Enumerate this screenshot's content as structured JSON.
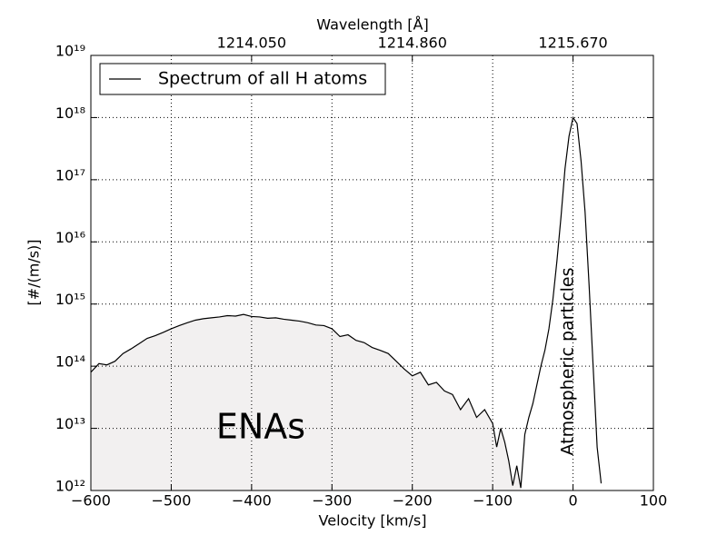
{
  "chart_data": {
    "type": "line",
    "xlabel": "Velocity [km/s]",
    "ylabel": "[#/(m/s)]",
    "x2label": "Wavelength [Å]",
    "log_y": true,
    "grid": true,
    "legend": "upper left",
    "fill_color": "#f2f0f0",
    "annotations": [
      "ENAs",
      "Atmospheric particles"
    ],
    "xlim": [
      -600,
      100
    ],
    "xticks": [
      {
        "value": -600,
        "label": "−600"
      },
      {
        "value": -500,
        "label": "−500"
      },
      {
        "value": -400,
        "label": "−400"
      },
      {
        "value": -300,
        "label": "−300"
      },
      {
        "value": -200,
        "label": "−200"
      },
      {
        "value": -100,
        "label": "−100"
      },
      0,
      100
    ],
    "x2lim": [
      1213.24,
      1216.075
    ],
    "x2ticks": [
      {
        "value": 1214.05,
        "label": "1214.050"
      },
      {
        "value": 1214.86,
        "label": "1214.860"
      },
      {
        "value": 1215.67,
        "label": "1215.670"
      }
    ],
    "ylim": [
      1000000000000.0,
      1e+19
    ],
    "yticks": [
      {
        "value": 1000000000000.0,
        "label": "10¹²"
      },
      {
        "value": 10000000000000.0,
        "label": "10¹³"
      },
      {
        "value": 100000000000000.0,
        "label": "10¹⁴"
      },
      {
        "value": 1000000000000000.0,
        "label": "10¹⁵"
      },
      {
        "value": 1e+16,
        "label": "10¹⁶"
      },
      {
        "value": 1e+17,
        "label": "10¹⁷"
      },
      {
        "value": 1e+18,
        "label": "10¹⁸"
      },
      {
        "value": 1e+19,
        "label": "10¹⁹"
      }
    ],
    "x": [
      -600,
      -590,
      -580,
      -570,
      -560,
      -550,
      -540,
      -530,
      -520,
      -510,
      -500,
      -490,
      -480,
      -470,
      -460,
      -450,
      -440,
      -430,
      -420,
      -410,
      -400,
      -390,
      -380,
      -370,
      -360,
      -350,
      -340,
      -330,
      -320,
      -310,
      -300,
      -290,
      -280,
      -270,
      -260,
      -250,
      -240,
      -230,
      -220,
      -210,
      -200,
      -190,
      -180,
      -170,
      -160,
      -150,
      -140,
      -130,
      -120,
      -110,
      -100,
      -95,
      -90,
      -85,
      -80,
      -75,
      -70,
      -65,
      -60,
      -55,
      -50,
      -45,
      -40,
      -35,
      -30,
      -25,
      -20,
      -15,
      -10,
      -5,
      0,
      5,
      10,
      15,
      20,
      25,
      30,
      35
    ],
    "series": [
      {
        "name": "Spectrum of all H atoms",
        "color": "#000000",
        "values": [
          80000000000000.0,
          110000000000000.0,
          105000000000000.0,
          120000000000000.0,
          160000000000000.0,
          190000000000000.0,
          230000000000000.0,
          280000000000000.0,
          310000000000000.0,
          350000000000000.0,
          400000000000000.0,
          450000000000000.0,
          500000000000000.0,
          550000000000000.0,
          580000000000000.0,
          600000000000000.0,
          620000000000000.0,
          650000000000000.0,
          640000000000000.0,
          680000000000000.0,
          630000000000000.0,
          620000000000000.0,
          590000000000000.0,
          600000000000000.0,
          570000000000000.0,
          550000000000000.0,
          530000000000000.0,
          500000000000000.0,
          460000000000000.0,
          450000000000000.0,
          400000000000000.0,
          300000000000000.0,
          320000000000000.0,
          260000000000000.0,
          240000000000000.0,
          200000000000000.0,
          180000000000000.0,
          160000000000000.0,
          120000000000000.0,
          90000000000000.0,
          70000000000000.0,
          80000000000000.0,
          50000000000000.0,
          55000000000000.0,
          40000000000000.0,
          35000000000000.0,
          20000000000000.0,
          30000000000000.0,
          15000000000000.0,
          20000000000000.0,
          12000000000000.0,
          5000000000000.0,
          10000000000000.0,
          6000000000000.0,
          3000000000000.0,
          1200000000000.0,
          2500000000000.0,
          1100000000000.0,
          8000000000000.0,
          15000000000000.0,
          25000000000000.0,
          50000000000000.0,
          100000000000000.0,
          180000000000000.0,
          400000000000000.0,
          1200000000000000.0,
          5000000000000000.0,
          2.5e+16,
          1.5e+17,
          5e+17,
          1e+18,
          8e+17,
          2e+17,
          3e+16,
          2000000000000000.0,
          100000000000000.0,
          5000000000000.0,
          1300000000000.0
        ]
      }
    ]
  }
}
